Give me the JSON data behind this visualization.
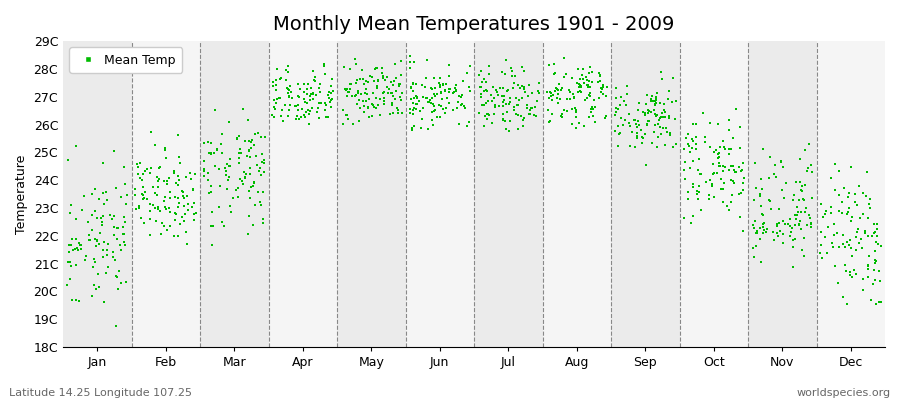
{
  "title": "Monthly Mean Temperatures 1901 - 2009",
  "ylabel": "Temperature",
  "xlabel": "",
  "marker_color": "#00bb00",
  "marker_size": 4,
  "ylim": [
    18,
    29
  ],
  "yticks": [
    18,
    19,
    20,
    21,
    22,
    23,
    24,
    25,
    26,
    27,
    28,
    29
  ],
  "ytick_labels": [
    "18C",
    "19C",
    "20C",
    "21C",
    "22C",
    "23C",
    "24C",
    "25C",
    "26C",
    "27C",
    "28C",
    "29C"
  ],
  "month_labels": [
    "Jan",
    "Feb",
    "Mar",
    "Apr",
    "May",
    "Jun",
    "Jul",
    "Aug",
    "Sep",
    "Oct",
    "Nov",
    "Dec"
  ],
  "legend_label": "Mean Temp",
  "footer_left": "Latitude 14.25 Longitude 107.25",
  "footer_right": "worldspecies.org",
  "plot_bg_even": "#ebebeb",
  "plot_bg_odd": "#f5f5f5",
  "grid_color": "#888888",
  "title_fontsize": 14,
  "axis_fontsize": 9,
  "tick_fontsize": 9,
  "footer_fontsize": 8,
  "monthly_means": [
    22.0,
    23.5,
    24.2,
    27.0,
    27.1,
    27.0,
    27.0,
    27.1,
    26.3,
    24.5,
    23.0,
    21.8
  ],
  "monthly_stds": [
    1.0,
    0.8,
    0.9,
    0.5,
    0.5,
    0.5,
    0.5,
    0.5,
    0.6,
    0.8,
    0.9,
    1.0
  ],
  "monthly_spreads": [
    2.2,
    1.5,
    1.6,
    0.8,
    0.9,
    0.9,
    0.9,
    0.9,
    1.2,
    1.4,
    1.8,
    2.0
  ],
  "n_years": 109,
  "random_seed": 7
}
